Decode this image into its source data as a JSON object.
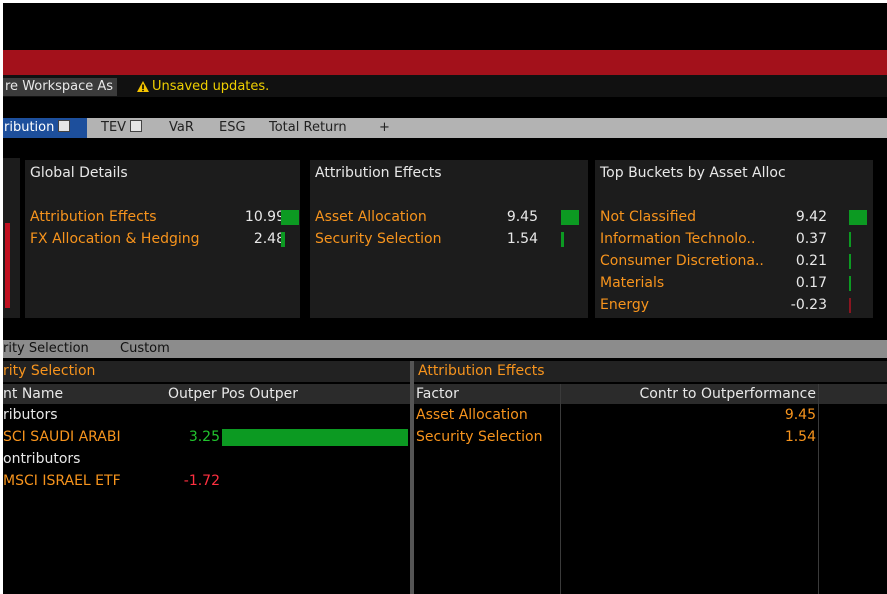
{
  "toolbar": {
    "save_button": "re Workspace As",
    "warning": "Unsaved updates."
  },
  "tabs": [
    "ribution",
    "TEV",
    "VaR",
    "ESG",
    "Total Return",
    "+"
  ],
  "panels": [
    {
      "title": "Global Details",
      "rows": [
        {
          "label": "Attribution Effects",
          "value": 10.99
        },
        {
          "label": "FX Allocation & Hedging",
          "value": 2.48
        }
      ]
    },
    {
      "title": "Attribution Effects",
      "rows": [
        {
          "label": "Asset Allocation",
          "value": 9.45
        },
        {
          "label": "Security Selection",
          "value": 1.54
        }
      ]
    },
    {
      "title": "Top Buckets by Asset Alloc",
      "rows": [
        {
          "label": "Not Classified",
          "value": 9.42
        },
        {
          "label": "Information Technolo..",
          "value": 0.37
        },
        {
          "label": "Consumer Discretiona..",
          "value": 0.21
        },
        {
          "label": "Materials",
          "value": 0.17
        },
        {
          "label": "Energy",
          "value": -0.23
        }
      ]
    }
  ],
  "lower_tabs": [
    "rity Selection",
    "Custom"
  ],
  "security_selection": {
    "title": "rity Selection",
    "columns": [
      "nt Name",
      "Outper Pos Outper"
    ],
    "groups": [
      {
        "label": "ributors",
        "rows": [
          {
            "name": "SCI SAUDI ARABI",
            "value": 3.25
          }
        ]
      },
      {
        "label": "ontributors",
        "rows": [
          {
            "name": "MSCI ISRAEL ETF",
            "value": -1.72
          }
        ]
      }
    ]
  },
  "attribution_effects": {
    "title": "Attribution Effects",
    "columns": [
      "Factor",
      "Contr to Outperformance"
    ],
    "rows": [
      {
        "factor": "Asset Allocation",
        "value": 9.45
      },
      {
        "factor": "Security Selection",
        "value": 1.54
      }
    ]
  }
}
